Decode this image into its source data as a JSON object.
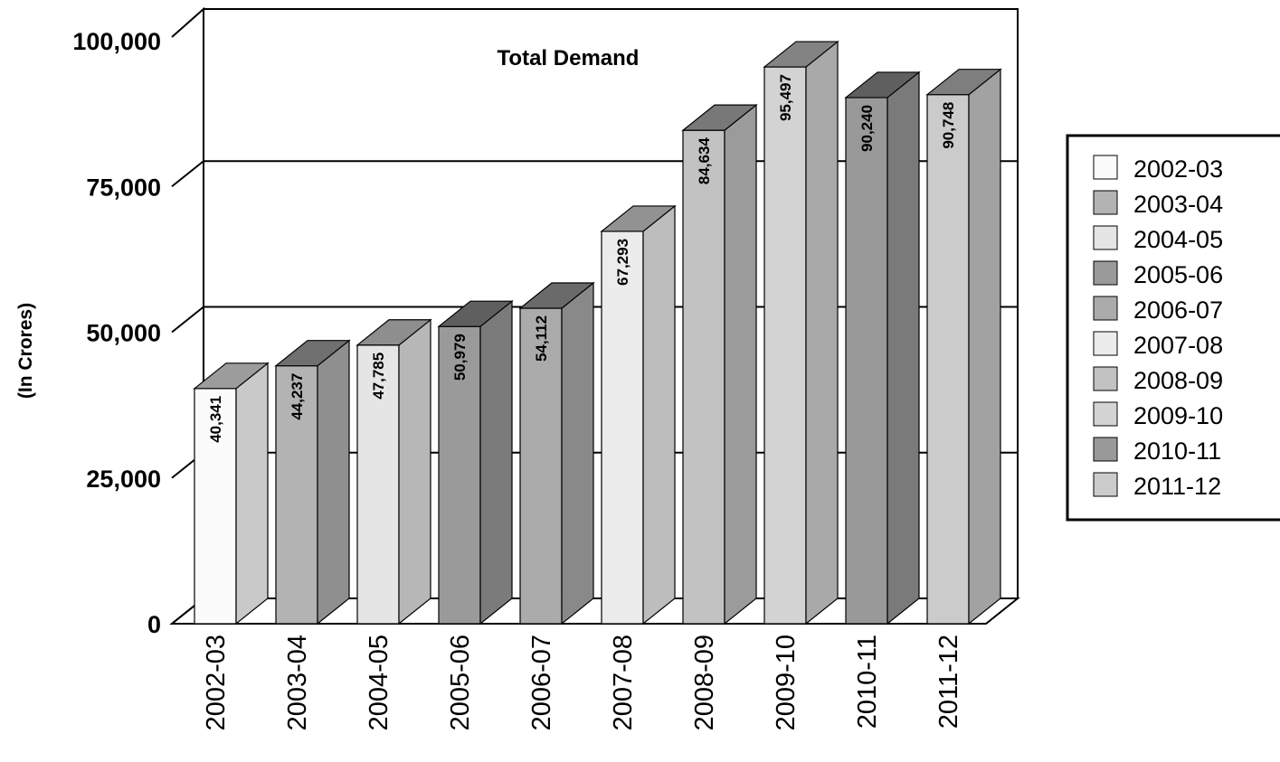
{
  "chart_data": {
    "type": "bar",
    "title": "Total Demand",
    "ylabel": "(In Crores)",
    "xlabel": "",
    "categories": [
      "2002-03",
      "2003-04",
      "2004-05",
      "2005-06",
      "2006-07",
      "2007-08",
      "2008-09",
      "2009-10",
      "2010-11",
      "2011-12"
    ],
    "values": [
      40341,
      44237,
      47785,
      50979,
      54112,
      67293,
      84634,
      95497,
      90240,
      90748
    ],
    "value_labels": [
      "40,341",
      "44,237",
      "47,785",
      "50,979",
      "54,112",
      "67,293",
      "84,634",
      "95,497",
      "90,240",
      "90,748"
    ],
    "ylim": [
      0,
      100000
    ],
    "yticks": [
      0,
      25000,
      50000,
      75000,
      100000
    ],
    "ytick_labels": [
      "0",
      "25,000",
      "50,000",
      "75,000",
      "100,000"
    ],
    "grid": true,
    "three_d": true,
    "legend_position": "right",
    "colors": [
      "#fbfbfb",
      "#b3b3b3",
      "#e5e5e5",
      "#9a9a9a",
      "#ababab",
      "#ececec",
      "#c2c2c2",
      "#d3d3d3",
      "#999999",
      "#cbcbcb"
    ]
  }
}
